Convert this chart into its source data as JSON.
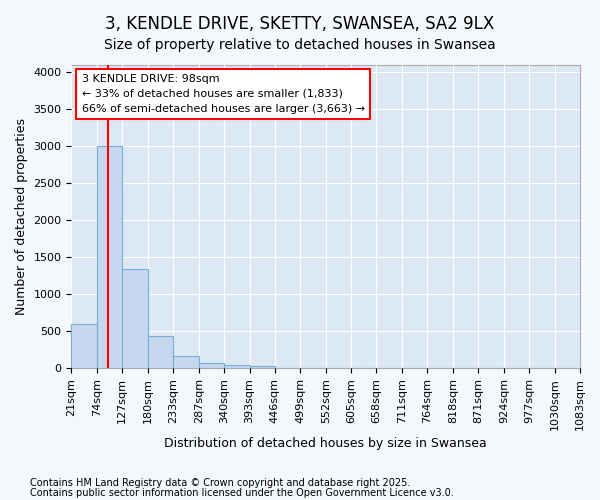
{
  "title": "3, KENDLE DRIVE, SKETTY, SWANSEA, SA2 9LX",
  "subtitle": "Size of property relative to detached houses in Swansea",
  "xlabel": "Distribution of detached houses by size in Swansea",
  "ylabel": "Number of detached properties",
  "bar_edges": [
    21,
    74,
    127,
    180,
    233,
    287,
    340,
    393,
    446,
    499,
    552,
    605,
    658,
    711,
    764,
    818,
    871,
    924,
    977,
    1030,
    1083
  ],
  "bar_heights": [
    600,
    3000,
    1350,
    440,
    175,
    80,
    50,
    30,
    10,
    5,
    3,
    2,
    1,
    1,
    0,
    0,
    0,
    0,
    0,
    0
  ],
  "bar_color": "#c5d8ef",
  "bar_edge_color": "#7aafd4",
  "red_line_x": 98,
  "ylim": [
    0,
    4100
  ],
  "yticks": [
    0,
    500,
    1000,
    1500,
    2000,
    2500,
    3000,
    3500,
    4000
  ],
  "annotation_title": "3 KENDLE DRIVE: 98sqm",
  "annotation_line1": "← 33% of detached houses are smaller (1,833)",
  "annotation_line2": "66% of semi-detached houses are larger (3,663) →",
  "footer_line1": "Contains HM Land Registry data © Crown copyright and database right 2025.",
  "footer_line2": "Contains public sector information licensed under the Open Government Licence v3.0.",
  "plot_bg_color": "#dce9f5",
  "fig_bg_color": "#f4f7fb",
  "grid_color": "#ffffff",
  "title_fontsize": 12,
  "subtitle_fontsize": 10,
  "axis_label_fontsize": 9,
  "tick_fontsize": 8,
  "footer_fontsize": 7
}
